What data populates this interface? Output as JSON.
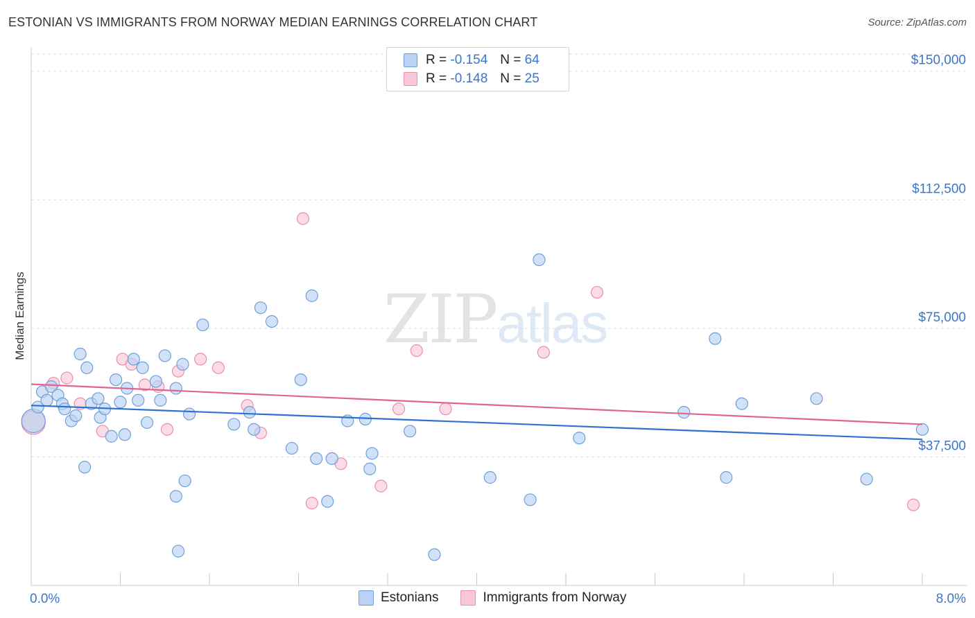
{
  "title": "ESTONIAN VS IMMIGRANTS FROM NORWAY MEDIAN EARNINGS CORRELATION CHART",
  "source": "Source: ZipAtlas.com",
  "watermark": {
    "zip": "ZIP",
    "atlas": "atlas"
  },
  "legend": {
    "rows": [
      {
        "r_label": "R = ",
        "r_value": "-0.154",
        "n_label": "N = ",
        "n_value": "64"
      },
      {
        "r_label": "R = ",
        "r_value": "-0.148",
        "n_label": "N = ",
        "n_value": "25"
      }
    ]
  },
  "colors": {
    "blue_fill": "#b8d3f5",
    "blue_stroke": "#6f9fd8",
    "blue_line": "#2f6fd0",
    "pink_fill": "#f9c8d8",
    "pink_stroke": "#e98fae",
    "pink_line": "#e0648e",
    "grid": "#dddddd",
    "axis_text": "#3a76c8"
  },
  "chart_data": {
    "type": "scatter",
    "title": "ESTONIAN VS IMMIGRANTS FROM NORWAY MEDIAN EARNINGS CORRELATION CHART",
    "xlabel": "",
    "ylabel": "Median Earnings",
    "xlim": [
      0,
      8.0
    ],
    "ylim": [
      0,
      155000
    ],
    "x_tick_labels": [
      "0.0%",
      "8.0%"
    ],
    "y_ticks": [
      37500,
      75000,
      112500,
      150000
    ],
    "y_tick_labels": [
      "$37,500",
      "$75,000",
      "$112,500",
      "$150,000"
    ],
    "grid": true,
    "legend_position": "top-center and bottom",
    "series": [
      {
        "name": "Estonians",
        "r": -0.154,
        "n": 64,
        "trend": {
          "x": [
            0,
            8.0
          ],
          "y": [
            52500,
            42600
          ]
        },
        "points": [
          [
            0.02,
            48000
          ],
          [
            0.06,
            52000
          ],
          [
            0.1,
            56500
          ],
          [
            0.14,
            54000
          ],
          [
            0.18,
            58000
          ],
          [
            0.24,
            55500
          ],
          [
            0.28,
            53000
          ],
          [
            0.3,
            51500
          ],
          [
            0.36,
            48000
          ],
          [
            0.4,
            49500
          ],
          [
            0.44,
            67500
          ],
          [
            0.5,
            63500
          ],
          [
            0.54,
            53000
          ],
          [
            0.6,
            54500
          ],
          [
            0.62,
            49000
          ],
          [
            0.66,
            51500
          ],
          [
            0.72,
            43500
          ],
          [
            0.76,
            60000
          ],
          [
            0.8,
            53500
          ],
          [
            0.84,
            44000
          ],
          [
            0.86,
            57500
          ],
          [
            0.92,
            66000
          ],
          [
            0.96,
            54000
          ],
          [
            1.0,
            63500
          ],
          [
            1.04,
            47500
          ],
          [
            1.12,
            59500
          ],
          [
            1.16,
            54000
          ],
          [
            1.2,
            67000
          ],
          [
            1.3,
            57500
          ],
          [
            1.36,
            64500
          ],
          [
            1.42,
            50000
          ],
          [
            1.54,
            76000
          ],
          [
            1.82,
            47000
          ],
          [
            1.96,
            50500
          ],
          [
            2.0,
            45500
          ],
          [
            2.06,
            81000
          ],
          [
            2.16,
            77000
          ],
          [
            2.34,
            40000
          ],
          [
            2.42,
            60000
          ],
          [
            2.52,
            84500
          ],
          [
            2.56,
            37000
          ],
          [
            2.7,
            37000
          ],
          [
            2.84,
            48000
          ],
          [
            3.0,
            48500
          ],
          [
            3.04,
            34000
          ],
          [
            3.06,
            38500
          ],
          [
            0.48,
            34500
          ],
          [
            1.38,
            30500
          ],
          [
            1.3,
            26000
          ],
          [
            1.32,
            10000
          ],
          [
            2.66,
            24500
          ],
          [
            3.4,
            45000
          ],
          [
            3.62,
            9000
          ],
          [
            4.12,
            31500
          ],
          [
            4.48,
            25000
          ],
          [
            4.56,
            95000
          ],
          [
            4.92,
            43000
          ],
          [
            5.86,
            50500
          ],
          [
            6.14,
            72000
          ],
          [
            6.24,
            31500
          ],
          [
            6.38,
            53000
          ],
          [
            7.05,
            54500
          ],
          [
            7.5,
            31000
          ],
          [
            8.0,
            45500
          ]
        ]
      },
      {
        "name": "Immigrants from Norway",
        "r": -0.148,
        "n": 25,
        "trend": {
          "x": [
            0,
            8.0
          ],
          "y": [
            58700,
            47000
          ]
        },
        "points": [
          [
            0.02,
            47500
          ],
          [
            0.2,
            59000
          ],
          [
            0.32,
            60500
          ],
          [
            0.44,
            53000
          ],
          [
            0.64,
            45000
          ],
          [
            0.82,
            66000
          ],
          [
            0.9,
            64500
          ],
          [
            1.02,
            58500
          ],
          [
            1.14,
            58000
          ],
          [
            1.22,
            45500
          ],
          [
            1.32,
            62500
          ],
          [
            1.52,
            66000
          ],
          [
            1.68,
            63500
          ],
          [
            1.94,
            52500
          ],
          [
            2.06,
            44500
          ],
          [
            2.44,
            107000
          ],
          [
            2.52,
            24000
          ],
          [
            2.78,
            35500
          ],
          [
            3.14,
            29000
          ],
          [
            3.3,
            51500
          ],
          [
            3.46,
            68500
          ],
          [
            3.72,
            51500
          ],
          [
            4.6,
            68000
          ],
          [
            5.08,
            85500
          ],
          [
            7.92,
            23500
          ]
        ]
      }
    ]
  }
}
